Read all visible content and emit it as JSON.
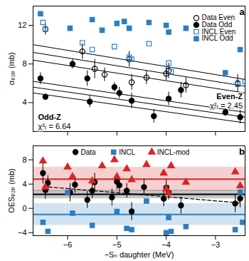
{
  "chart_data": [
    {
      "type": "scatter",
      "title": "a",
      "y_label": "σₚ₂ₚ (mb)",
      "xlim": [
        -6.7,
        -2.4
      ],
      "xticks": [
        {
          "value": -6,
          "label": "−6"
        },
        {
          "value": -5,
          "label": "−5"
        },
        {
          "value": -4,
          "label": "−4"
        },
        {
          "value": -3,
          "label": "−3"
        }
      ],
      "tick_labels": "y",
      "ylim": [
        1,
        14
      ],
      "yticks": [
        4,
        8,
        12
      ],
      "legend": "top-right",
      "series": [
        {
          "name": "Data Even",
          "color": "#000000",
          "marker": "open circle",
          "x": [
            -6.45,
            -5.7,
            -5.45,
            -5.25,
            -4.75,
            -4.7,
            -4.4,
            -4.0,
            -3.95,
            -3.6,
            -2.55
          ],
          "values": [
            11.6,
            9.3,
            7.5,
            6.9,
            8.5,
            6.1,
            6.6,
            7.0,
            7.3,
            5.8,
            6.0
          ],
          "errors": [
            0.6,
            0.8,
            1.0,
            0.7,
            0.8,
            0.8,
            0.7,
            0.7,
            0.8,
            0.8,
            0.9
          ]
        },
        {
          "name": "Data Odd",
          "color": "#000000",
          "marker": "circle",
          "x": [
            -6.55,
            -6.45,
            -5.9,
            -5.6,
            -5.55,
            -5.05,
            -4.95,
            -4.7,
            -4.25,
            -3.95,
            -3.7,
            -2.8,
            -2.5
          ],
          "values": [
            6.5,
            4.6,
            8.0,
            6.5,
            4.1,
            5.6,
            5.0,
            4.2,
            2.6,
            4.4,
            5.3,
            3.0,
            2.5
          ],
          "errors": [
            0.6,
            0.3,
            0.5,
            0.8,
            0.6,
            0.5,
            0.6,
            0.8,
            0.7,
            0.7,
            0.8,
            0.4,
            0.7
          ]
        },
        {
          "name": "INCL Even",
          "color": "#2e7ebf",
          "marker": "open square",
          "x": [
            -6.5,
            -6.45,
            -5.7,
            -5.5,
            -5.05,
            -4.75,
            -4.7,
            -4.35,
            -3.95,
            -3.9,
            -2.55,
            -2.4
          ],
          "values": [
            12.3,
            11.6,
            10.2,
            9.5,
            9.8,
            8.7,
            8.5,
            10.1,
            8.1,
            7.2,
            5.9,
            6.2
          ]
        },
        {
          "name": "INCL Odd",
          "color": "#2e7ebf",
          "marker": "square",
          "x": [
            -6.55,
            -5.95,
            -5.5,
            -5.3,
            -5.0,
            -4.85,
            -4.75,
            -4.35,
            -4.0,
            -3.95,
            -3.6,
            -2.8,
            -2.5
          ],
          "values": [
            13.2,
            11.7,
            12.6,
            11.5,
            12.2,
            12.4,
            11.7,
            12.3,
            12.0,
            11.3,
            11.7,
            7.1,
            9.5
          ]
        }
      ],
      "fits": [
        {
          "name": "Even-Z",
          "annotation": "χ²ᵣ = 2.45",
          "text_x": -2.45,
          "text_y": 4.6,
          "color": "#000000",
          "x": [
            -6.7,
            -2.4
          ],
          "upper": [
            10.0,
            6.4
          ],
          "values": [
            9.2,
            5.7
          ],
          "lower": [
            8.4,
            5.0
          ]
        },
        {
          "name": "Odd-Z",
          "annotation": "χ²ᵣ = 6.64",
          "text_x": -6.6,
          "text_y": 2.5,
          "color": "#000000",
          "x": [
            -6.7,
            -2.4
          ],
          "upper": [
            6.2,
            3.0
          ],
          "values": [
            5.6,
            2.5
          ],
          "lower": [
            5.0,
            1.9
          ]
        }
      ]
    },
    {
      "type": "scatter",
      "title": "b",
      "x_label": "−Sₙ daughter (MeV)",
      "y_label": "OESₚ₂ₚ (mb)",
      "xlim": [
        -6.7,
        -2.4
      ],
      "xticks": [
        {
          "value": -6,
          "label": "−6"
        },
        {
          "value": -5,
          "label": "−5"
        },
        {
          "value": -4,
          "label": "−4"
        },
        {
          "value": -3,
          "label": "−3"
        }
      ],
      "ylim": [
        -4.5,
        10.3
      ],
      "yticks": [
        {
          "value": -4,
          "label": "−4"
        },
        0,
        4,
        8
      ],
      "legend": "top",
      "series": [
        {
          "name": "Data",
          "color": "#000000",
          "marker": "circle",
          "x": [
            -6.5,
            -6.45,
            -6.4,
            -5.95,
            -5.85,
            -5.6,
            -5.5,
            -5.45,
            -5.1,
            -5.0,
            -4.95,
            -4.8,
            -4.7,
            -4.45,
            -4.05,
            -4.0,
            -3.95,
            -3.7,
            -2.6,
            -2.5
          ],
          "values": [
            5.8,
            3.0,
            4.2,
            2.6,
            3.9,
            1.4,
            2.9,
            4.3,
            1.8,
            4.4,
            3.8,
            2.9,
            -0.5,
            3.5,
            1.6,
            3.4,
            2.6,
            0.5,
            0.8,
            1.6
          ],
          "errors": [
            1.8,
            1.5,
            1.2,
            1.5,
            1.4,
            1.4,
            1.3,
            1.5,
            1.4,
            1.3,
            1.2,
            1.2,
            1.5,
            1.3,
            1.3,
            1.3,
            1.2,
            1.4,
            1.5,
            1.5
          ]
        },
        {
          "name": "INCL",
          "color": "#2e7ebf",
          "marker": "square",
          "x": [
            -6.5,
            -6.4,
            -6.0,
            -5.9,
            -5.5,
            -5.0,
            -4.8,
            -4.7,
            -4.4,
            -4.0,
            -3.95,
            -3.9,
            -3.6,
            -2.6,
            -2.5,
            -2.45
          ],
          "values": [
            -2.3,
            -3.8,
            2.6,
            -0.8,
            -2.8,
            -0.5,
            -3.3,
            -3.5,
            1.2,
            -4.0,
            -1.5,
            -3.8,
            -3.0,
            -3.5,
            2.7,
            -2.3
          ]
        },
        {
          "name": "INCL-mod",
          "color": "#d62728",
          "marker": "triangle",
          "x": [
            -6.5,
            -6.45,
            -6.0,
            -5.9,
            -5.5,
            -5.3,
            -5.05,
            -5.0,
            -4.8,
            -4.7,
            -4.4,
            -4.05,
            -4.0,
            -3.95,
            -3.9,
            -3.6,
            -2.6,
            -2.5
          ],
          "values": [
            7.8,
            3.5,
            6.8,
            5.2,
            4.5,
            7.0,
            8.0,
            5.2,
            6.5,
            4.7,
            7.2,
            5.8,
            3.2,
            2.5,
            7.0,
            4.3,
            6.0,
            3.7
          ]
        }
      ],
      "bands": [
        {
          "color": "#d62728",
          "value": 4.8,
          "lower": 2.8,
          "upper": 6.8
        },
        {
          "color": "#000000",
          "value": 2.3,
          "lower": 1.6,
          "upper": 3.0
        },
        {
          "color": "#2e7ebf",
          "value": -1.0,
          "lower": -2.8,
          "upper": 0.8
        }
      ],
      "trend": {
        "color": "#000000",
        "line_style": "dashed",
        "x": [
          -6.5,
          -2.5
        ],
        "values": [
          3.6,
          0.9
        ]
      }
    }
  ]
}
